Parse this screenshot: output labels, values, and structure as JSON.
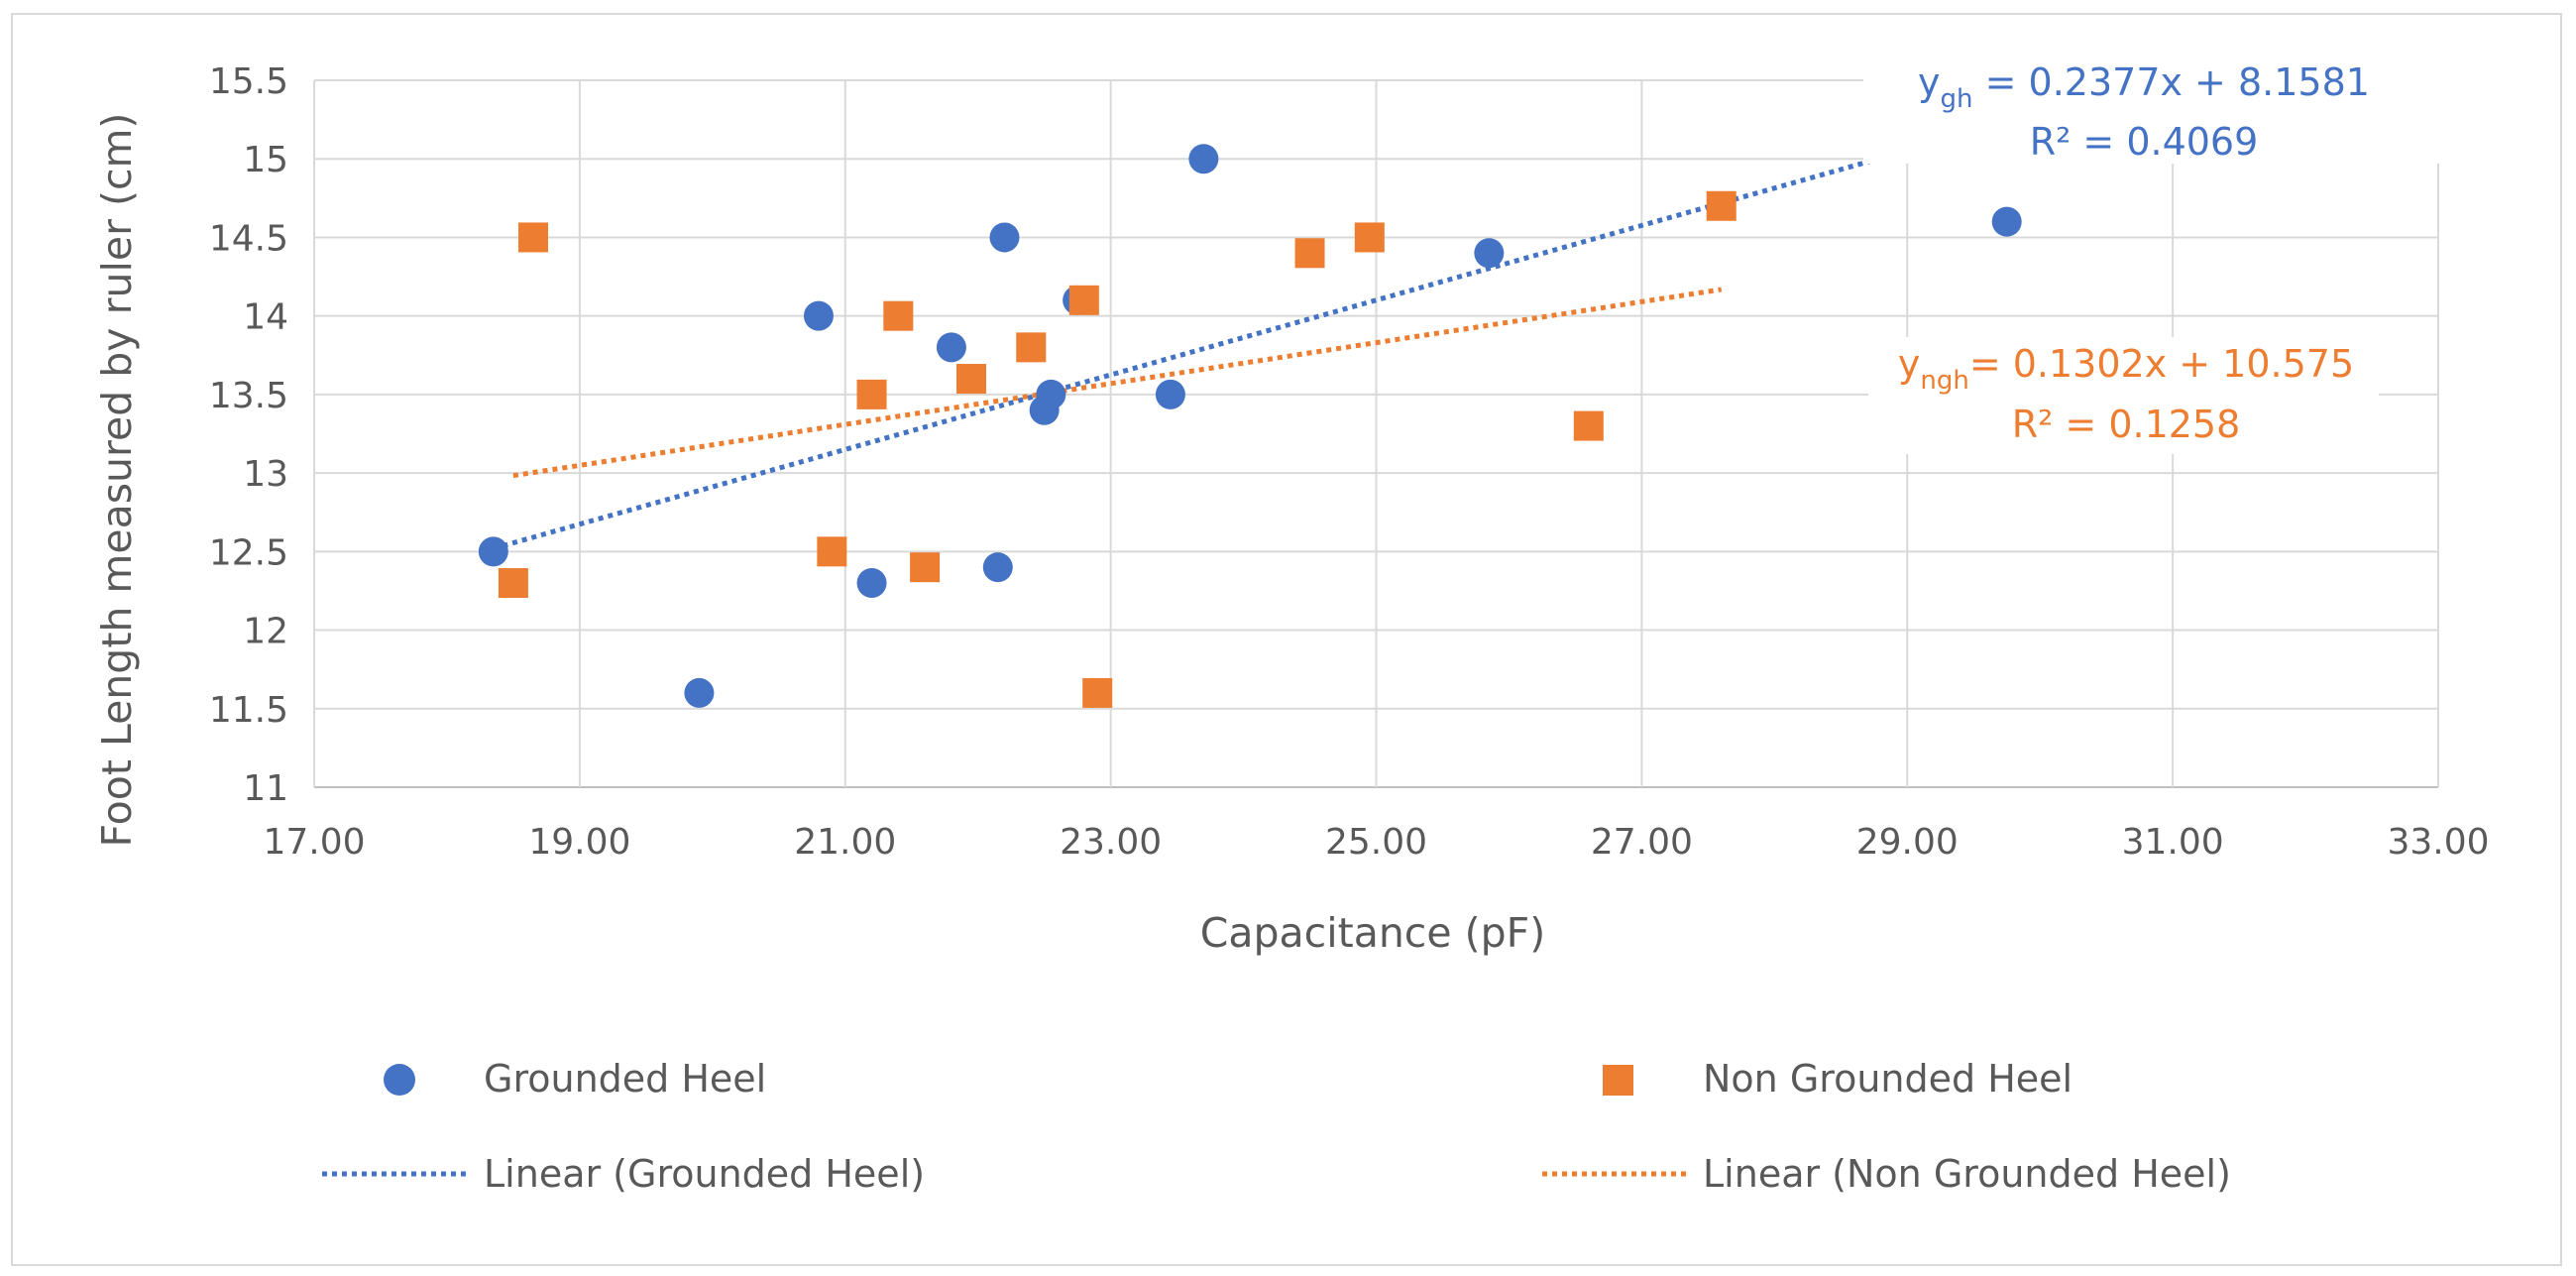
{
  "chart_data": {
    "type": "scatter",
    "title": "",
    "xlabel": "Capacitance (pF)",
    "ylabel": "Foot Length measured by ruler (cm)",
    "xlim": [
      17,
      33
    ],
    "ylim": [
      11,
      15.5
    ],
    "xticks": [
      "17.00",
      "19.00",
      "21.00",
      "23.00",
      "25.00",
      "27.00",
      "29.00",
      "31.00",
      "33.00"
    ],
    "yticks": [
      "11",
      "11.5",
      "12",
      "12.5",
      "13",
      "13.5",
      "14",
      "14.5",
      "15",
      "15.5"
    ],
    "grid": "major gridlines",
    "legend_position": "bottom",
    "colors": {
      "grounded": "#4472c4",
      "non_grounded": "#ed7d31"
    },
    "series": [
      {
        "name": "Grounded Heel",
        "marker": "circle",
        "points": [
          [
            18.35,
            12.5
          ],
          [
            19.9,
            11.6
          ],
          [
            20.8,
            14.0
          ],
          [
            21.2,
            12.3
          ],
          [
            21.8,
            13.8
          ],
          [
            22.15,
            12.4
          ],
          [
            22.2,
            14.5
          ],
          [
            22.5,
            13.4
          ],
          [
            22.55,
            13.5
          ],
          [
            22.75,
            14.1
          ],
          [
            23.45,
            13.5
          ],
          [
            23.7,
            15.0
          ],
          [
            25.85,
            14.4
          ],
          [
            29.75,
            14.6
          ]
        ]
      },
      {
        "name": "Non Grounded Heel",
        "marker": "square",
        "points": [
          [
            18.5,
            12.3
          ],
          [
            18.65,
            14.5
          ],
          [
            20.9,
            12.5
          ],
          [
            21.2,
            13.5
          ],
          [
            21.4,
            14.0
          ],
          [
            21.6,
            12.4
          ],
          [
            21.95,
            13.6
          ],
          [
            22.4,
            13.8
          ],
          [
            22.8,
            14.1
          ],
          [
            22.9,
            11.6
          ],
          [
            24.5,
            14.4
          ],
          [
            24.95,
            14.5
          ],
          [
            26.6,
            13.3
          ],
          [
            27.6,
            14.7
          ]
        ]
      }
    ],
    "trendlines": [
      {
        "name": "Linear (Grounded Heel)",
        "slope": 0.2377,
        "intercept": 8.1581,
        "x_range": [
          18.35,
          29.75
        ],
        "equation_prefix": "y",
        "equation_sub": "gh",
        "equation_rest": " = 0.2377x + 8.1581",
        "r2_label": "R² = 0.4069"
      },
      {
        "name": "Linear (Non Grounded Heel)",
        "slope": 0.1302,
        "intercept": 10.575,
        "x_range": [
          18.5,
          27.6
        ],
        "equation_prefix": "y",
        "equation_sub": "ngh",
        "equation_rest": "= 0.1302x + 10.575",
        "r2_label": "R² = 0.1258"
      }
    ]
  }
}
